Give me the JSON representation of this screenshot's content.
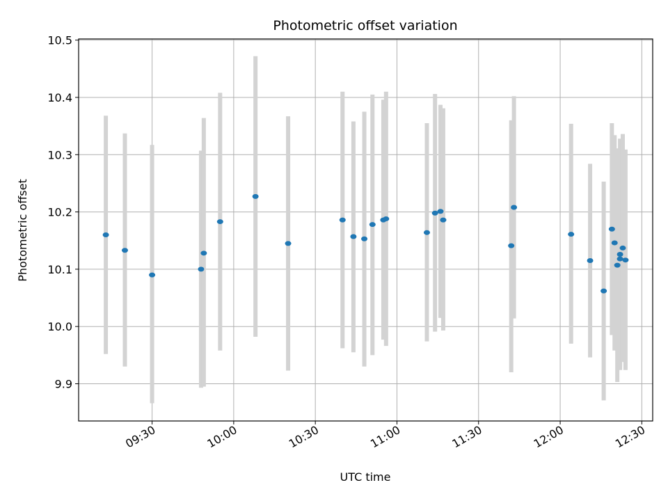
{
  "chart_data": {
    "type": "scatter",
    "title": "Photometric offset variation",
    "xlabel": "UTC time",
    "ylabel": "Photometric offset",
    "x_tick_labels": [
      "09:30",
      "10:00",
      "10:30",
      "11:00",
      "11:30",
      "12:00",
      "12:30"
    ],
    "y_tick_labels": [
      "9.9",
      "10.0",
      "10.1",
      "10.2",
      "10.3",
      "10.4",
      "10.5"
    ],
    "x_ticks": [
      "09:30",
      "10:00",
      "10:30",
      "11:00",
      "11:30",
      "12:00",
      "12:30"
    ],
    "y_ticks": [
      9.9,
      10.0,
      10.1,
      10.2,
      10.3,
      10.4,
      10.5
    ],
    "xlim": [
      "09:03",
      "12:34"
    ],
    "ylim": [
      9.835,
      10.502
    ],
    "grid": true,
    "legend": "none",
    "colors": {
      "point": "#1f77b4",
      "errorbar": "#d3d3d3",
      "grid": "#b0b0b0",
      "axis": "#000000"
    },
    "points": [
      {
        "x": "09:13",
        "y": 10.16,
        "lo": 9.952,
        "hi": 10.368
      },
      {
        "x": "09:20",
        "y": 10.133,
        "lo": 9.93,
        "hi": 10.337
      },
      {
        "x": "09:30",
        "y": 10.09,
        "lo": 9.866,
        "hi": 10.317
      },
      {
        "x": "09:48",
        "y": 10.1,
        "lo": 9.893,
        "hi": 10.307
      },
      {
        "x": "09:49",
        "y": 10.128,
        "lo": 9.895,
        "hi": 10.364
      },
      {
        "x": "09:55",
        "y": 10.183,
        "lo": 9.958,
        "hi": 10.408
      },
      {
        "x": "10:08",
        "y": 10.227,
        "lo": 9.982,
        "hi": 10.472
      },
      {
        "x": "10:20",
        "y": 10.145,
        "lo": 9.923,
        "hi": 10.367
      },
      {
        "x": "10:40",
        "y": 10.186,
        "lo": 9.962,
        "hi": 10.41
      },
      {
        "x": "10:44",
        "y": 10.157,
        "lo": 9.955,
        "hi": 10.358
      },
      {
        "x": "10:48",
        "y": 10.153,
        "lo": 9.93,
        "hi": 10.375
      },
      {
        "x": "10:51",
        "y": 10.178,
        "lo": 9.95,
        "hi": 10.405
      },
      {
        "x": "10:55",
        "y": 10.186,
        "lo": 9.977,
        "hi": 10.396
      },
      {
        "x": "10:56",
        "y": 10.188,
        "lo": 9.966,
        "hi": 10.41
      },
      {
        "x": "11:11",
        "y": 10.164,
        "lo": 9.974,
        "hi": 10.355
      },
      {
        "x": "11:14",
        "y": 10.198,
        "lo": 9.991,
        "hi": 10.406
      },
      {
        "x": "11:16",
        "y": 10.201,
        "lo": 10.015,
        "hi": 10.387
      },
      {
        "x": "11:17",
        "y": 10.186,
        "lo": 9.993,
        "hi": 10.381
      },
      {
        "x": "11:42",
        "y": 10.141,
        "lo": 9.92,
        "hi": 10.36
      },
      {
        "x": "11:43",
        "y": 10.208,
        "lo": 10.014,
        "hi": 10.402
      },
      {
        "x": "12:04",
        "y": 10.161,
        "lo": 9.97,
        "hi": 10.354
      },
      {
        "x": "12:11",
        "y": 10.115,
        "lo": 9.946,
        "hi": 10.284
      },
      {
        "x": "12:16",
        "y": 10.062,
        "lo": 9.871,
        "hi": 10.253
      },
      {
        "x": "12:19",
        "y": 10.17,
        "lo": 9.985,
        "hi": 10.355
      },
      {
        "x": "12:20",
        "y": 10.146,
        "lo": 9.958,
        "hi": 10.334
      },
      {
        "x": "12:21",
        "y": 10.107,
        "lo": 9.903,
        "hi": 10.311
      },
      {
        "x": "12:22",
        "y": 10.126,
        "lo": 9.924,
        "hi": 10.328
      },
      {
        "x": "12:22",
        "y": 10.118,
        "lo": 9.93,
        "hi": 10.306
      },
      {
        "x": "12:23",
        "y": 10.137,
        "lo": 9.938,
        "hi": 10.336
      },
      {
        "x": "12:24",
        "y": 10.116,
        "lo": 9.924,
        "hi": 10.309
      }
    ]
  }
}
